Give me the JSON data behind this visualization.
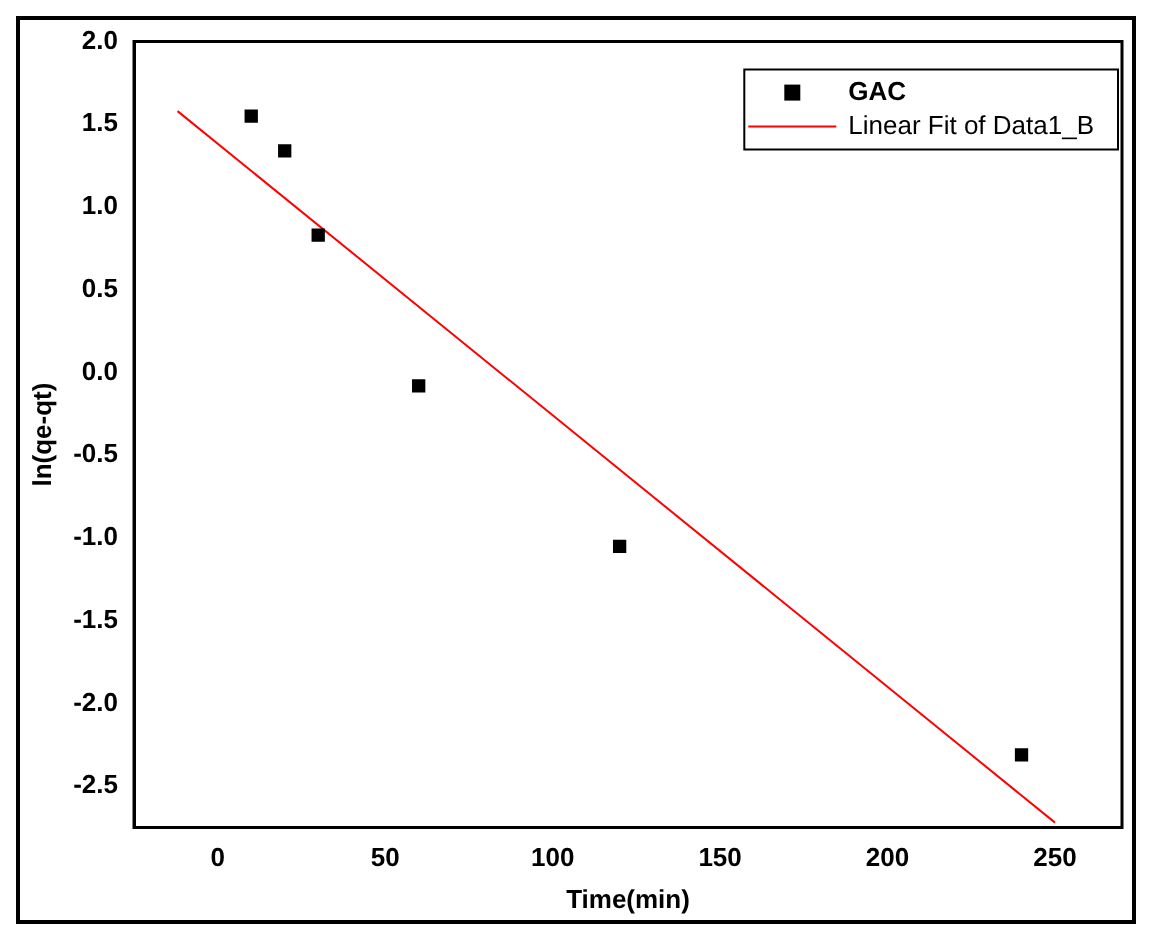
{
  "chart_data": {
    "type": "scatter",
    "xlabel": "Time(min)",
    "ylabel": "ln(qe-qt)",
    "xlim": [
      -25,
      270
    ],
    "xticks": [
      0,
      50,
      100,
      150,
      200,
      250
    ],
    "ylim": [
      -2.75,
      2.0
    ],
    "yticks": [
      -2.5,
      {
        "value": -2,
        "label": "-2.0"
      },
      -1.5,
      {
        "value": -1,
        "label": "-1.0"
      },
      -0.5,
      {
        "value": 0,
        "label": "0.0"
      },
      0.5,
      {
        "value": 1,
        "label": "1.0"
      },
      1.5,
      {
        "value": 2,
        "label": "2.0"
      }
    ],
    "grid": false,
    "legend": "top right",
    "series": [
      {
        "name": "GAC",
        "marker": "square",
        "color": "#000000",
        "x": [
          10,
          20,
          30,
          60,
          120,
          240
        ],
        "values": [
          1.55,
          1.34,
          0.83,
          -0.08,
          -1.05,
          -2.31
        ]
      },
      {
        "name": "Linear Fit of Data1_B",
        "type": "line",
        "marker": "none",
        "color": "#ff0000",
        "x": [
          -12,
          250
        ],
        "values": [
          1.58,
          -2.72
        ]
      }
    ]
  }
}
